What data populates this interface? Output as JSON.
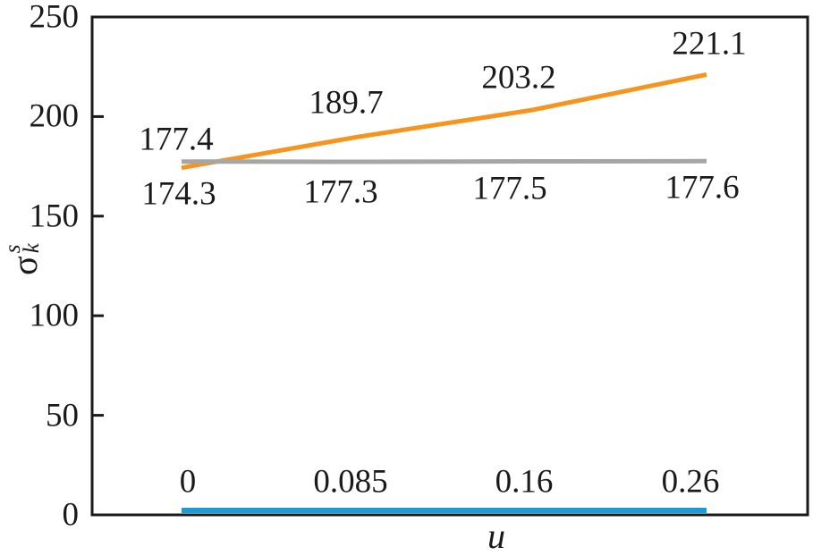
{
  "chart_data": {
    "type": "line",
    "x_values": [
      0,
      0.085,
      0.16,
      0.26
    ],
    "xlabel": "u",
    "ylabel": {
      "base": "σ",
      "sub": "k",
      "sup": "s"
    },
    "ylim": [
      0,
      250
    ],
    "yticks": [
      "0",
      "50",
      "100",
      "150",
      "200",
      "250"
    ],
    "grid": false,
    "legend": "none",
    "axis_color": "#1a1a1a",
    "series": [
      {
        "name": "orange-series",
        "color": "#F7941E",
        "values": [
          174.3,
          189.7,
          203.2,
          221.1
        ],
        "labels": [
          "174.3",
          "189.7",
          "203.2",
          "221.1"
        ]
      },
      {
        "name": "gray-series",
        "color": "#A6A6A6",
        "values": [
          177.4,
          177.3,
          177.5,
          177.6
        ],
        "labels": [
          "177.4",
          "177.3",
          "177.5",
          "177.6"
        ]
      },
      {
        "name": "blue-series",
        "color": "#1A9CD8",
        "values": [
          0,
          0.085,
          0.16,
          0.26
        ],
        "labels": [
          "0",
          "0.085",
          "0.16",
          "0.26"
        ]
      }
    ]
  }
}
